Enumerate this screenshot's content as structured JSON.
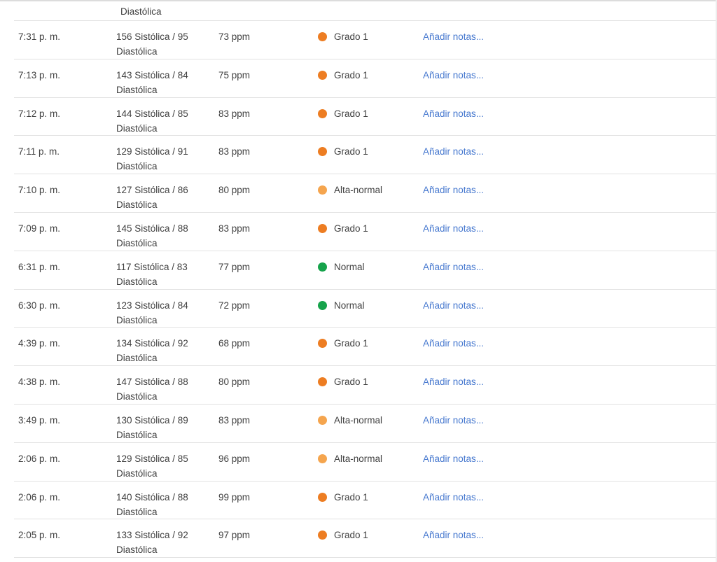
{
  "colors": {
    "grade1": "#ed7d22",
    "alta_normal": "#f5a54e",
    "normal": "#16a34b",
    "link": "#4678cf",
    "text": "#404040",
    "divider": "#e2e2e2"
  },
  "partial_row": {
    "bp_overflow_text": "Diastólica"
  },
  "table": {
    "notes_label": "Añadir notas...",
    "rows": [
      {
        "time": "7:31 p. m.",
        "bp": "156 Sistólica / 95 Diastólica",
        "pulse": "73 ppm",
        "category": "Grado 1",
        "category_color": "grade1"
      },
      {
        "time": "7:13 p. m.",
        "bp": "143 Sistólica / 84 Diastólica",
        "pulse": "75 ppm",
        "category": "Grado 1",
        "category_color": "grade1"
      },
      {
        "time": "7:12 p. m.",
        "bp": "144 Sistólica / 85 Diastólica",
        "pulse": "83 ppm",
        "category": "Grado 1",
        "category_color": "grade1"
      },
      {
        "time": "7:11 p. m.",
        "bp": "129 Sistólica / 91 Diastólica",
        "pulse": "83 ppm",
        "category": "Grado 1",
        "category_color": "grade1"
      },
      {
        "time": "7:10 p. m.",
        "bp": "127 Sistólica / 86 Diastólica",
        "pulse": "80 ppm",
        "category": "Alta-normal",
        "category_color": "alta_normal"
      },
      {
        "time": "7:09 p. m.",
        "bp": "145 Sistólica / 88 Diastólica",
        "pulse": "83 ppm",
        "category": "Grado 1",
        "category_color": "grade1"
      },
      {
        "time": "6:31 p. m.",
        "bp": "117 Sistólica / 83 Diastólica",
        "pulse": "77 ppm",
        "category": "Normal",
        "category_color": "normal"
      },
      {
        "time": "6:30 p. m.",
        "bp": "123 Sistólica / 84 Diastólica",
        "pulse": "72 ppm",
        "category": "Normal",
        "category_color": "normal"
      },
      {
        "time": "4:39 p. m.",
        "bp": "134 Sistólica / 92 Diastólica",
        "pulse": "68 ppm",
        "category": "Grado 1",
        "category_color": "grade1"
      },
      {
        "time": "4:38 p. m.",
        "bp": "147 Sistólica / 88 Diastólica",
        "pulse": "80 ppm",
        "category": "Grado 1",
        "category_color": "grade1"
      },
      {
        "time": "3:49 p. m.",
        "bp": "130 Sistólica / 89 Diastólica",
        "pulse": "83 ppm",
        "category": "Alta-normal",
        "category_color": "alta_normal"
      },
      {
        "time": "2:06 p. m.",
        "bp": "129 Sistólica / 85 Diastólica",
        "pulse": "96 ppm",
        "category": "Alta-normal",
        "category_color": "alta_normal"
      },
      {
        "time": "2:06 p. m.",
        "bp": "140 Sistólica / 88 Diastólica",
        "pulse": "99 ppm",
        "category": "Grado 1",
        "category_color": "grade1"
      },
      {
        "time": "2:05 p. m.",
        "bp": "133 Sistólica / 92 Diastólica",
        "pulse": "97 ppm",
        "category": "Grado 1",
        "category_color": "grade1"
      }
    ]
  }
}
